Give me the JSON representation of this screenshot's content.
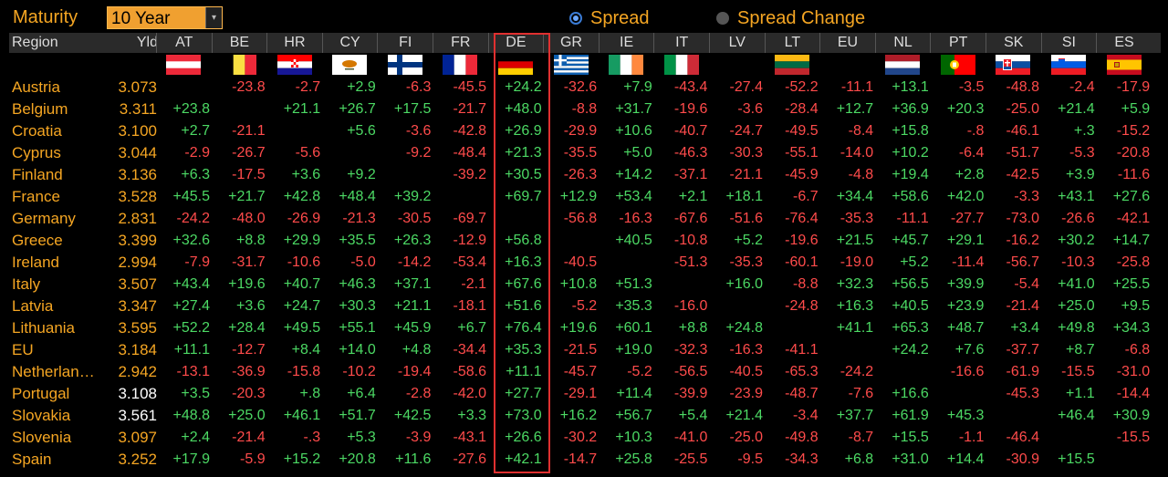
{
  "toolbar": {
    "maturity_label": "Maturity",
    "maturity_value": "10 Year",
    "dropdown_arrow": "▾",
    "spread_label": "Spread",
    "spread_change_label": "Spread Change",
    "selected": "Spread"
  },
  "columns": {
    "region_header": "Region",
    "yld_header": "Yld",
    "countries": [
      "AT",
      "BE",
      "HR",
      "CY",
      "FI",
      "FR",
      "DE",
      "GR",
      "IE",
      "IT",
      "LV",
      "LT",
      "EU",
      "NL",
      "PT",
      "SK",
      "SI",
      "ES"
    ]
  },
  "flags": {
    "AT": "austria-flag",
    "BE": "belgium-flag",
    "HR": "croatia-flag",
    "CY": "cyprus-flag",
    "FI": "finland-flag",
    "FR": "france-flag",
    "DE": "germany-flag",
    "GR": "greece-flag",
    "IE": "ireland-flag",
    "IT": "italy-flag",
    "LT": "lithuania-flag",
    "NL": "netherlands-flag",
    "PT": "portugal-flag",
    "SK": "slovakia-flag",
    "SI": "slovenia-flag",
    "ES": "spain-flag"
  },
  "colors": {
    "positive": "#4cd964",
    "negative": "#ff4b4b",
    "accent": "#f5a623",
    "highlight_border": "#e03030"
  },
  "rows": [
    {
      "region": "Austria",
      "yld": "3.073",
      "values": [
        "",
        "-23.8",
        "-2.7",
        "+2.9",
        "-6.3",
        "-45.5",
        "+24.2",
        "-32.6",
        "+7.9",
        "-43.4",
        "-27.4",
        "-52.2",
        "-11.1",
        "+13.1",
        "-3.5",
        "-48.8",
        "-2.4",
        "-17.9"
      ]
    },
    {
      "region": "Belgium",
      "yld": "3.311",
      "values": [
        "+23.8",
        "",
        "+21.1",
        "+26.7",
        "+17.5",
        "-21.7",
        "+48.0",
        "-8.8",
        "+31.7",
        "-19.6",
        "-3.6",
        "-28.4",
        "+12.7",
        "+36.9",
        "+20.3",
        "-25.0",
        "+21.4",
        "+5.9"
      ]
    },
    {
      "region": "Croatia",
      "yld": "3.100",
      "values": [
        "+2.7",
        "-21.1",
        "",
        "+5.6",
        "-3.6",
        "-42.8",
        "+26.9",
        "-29.9",
        "+10.6",
        "-40.7",
        "-24.7",
        "-49.5",
        "-8.4",
        "+15.8",
        "-.8",
        "-46.1",
        "+.3",
        "-15.2"
      ]
    },
    {
      "region": "Cyprus",
      "yld": "3.044",
      "values": [
        "-2.9",
        "-26.7",
        "-5.6",
        "",
        "-9.2",
        "-48.4",
        "+21.3",
        "-35.5",
        "+5.0",
        "-46.3",
        "-30.3",
        "-55.1",
        "-14.0",
        "+10.2",
        "-6.4",
        "-51.7",
        "-5.3",
        "-20.8"
      ]
    },
    {
      "region": "Finland",
      "yld": "3.136",
      "values": [
        "+6.3",
        "-17.5",
        "+3.6",
        "+9.2",
        "",
        "-39.2",
        "+30.5",
        "-26.3",
        "+14.2",
        "-37.1",
        "-21.1",
        "-45.9",
        "-4.8",
        "+19.4",
        "+2.8",
        "-42.5",
        "+3.9",
        "-11.6"
      ]
    },
    {
      "region": "France",
      "yld": "3.528",
      "values": [
        "+45.5",
        "+21.7",
        "+42.8",
        "+48.4",
        "+39.2",
        "",
        "+69.7",
        "+12.9",
        "+53.4",
        "+2.1",
        "+18.1",
        "-6.7",
        "+34.4",
        "+58.6",
        "+42.0",
        "-3.3",
        "+43.1",
        "+27.6"
      ]
    },
    {
      "region": "Germany",
      "yld": "2.831",
      "values": [
        "-24.2",
        "-48.0",
        "-26.9",
        "-21.3",
        "-30.5",
        "-69.7",
        "",
        "-56.8",
        "-16.3",
        "-67.6",
        "-51.6",
        "-76.4",
        "-35.3",
        "-11.1",
        "-27.7",
        "-73.0",
        "-26.6",
        "-42.1"
      ]
    },
    {
      "region": "Greece",
      "yld": "3.399",
      "values": [
        "+32.6",
        "+8.8",
        "+29.9",
        "+35.5",
        "+26.3",
        "-12.9",
        "+56.8",
        "",
        "+40.5",
        "-10.8",
        "+5.2",
        "-19.6",
        "+21.5",
        "+45.7",
        "+29.1",
        "-16.2",
        "+30.2",
        "+14.7"
      ]
    },
    {
      "region": "Ireland",
      "yld": "2.994",
      "values": [
        "-7.9",
        "-31.7",
        "-10.6",
        "-5.0",
        "-14.2",
        "-53.4",
        "+16.3",
        "-40.5",
        "",
        "-51.3",
        "-35.3",
        "-60.1",
        "-19.0",
        "+5.2",
        "-11.4",
        "-56.7",
        "-10.3",
        "-25.8"
      ]
    },
    {
      "region": "Italy",
      "yld": "3.507",
      "values": [
        "+43.4",
        "+19.6",
        "+40.7",
        "+46.3",
        "+37.1",
        "-2.1",
        "+67.6",
        "+10.8",
        "+51.3",
        "",
        "+16.0",
        "-8.8",
        "+32.3",
        "+56.5",
        "+39.9",
        "-5.4",
        "+41.0",
        "+25.5"
      ]
    },
    {
      "region": "Latvia",
      "yld": "3.347",
      "values": [
        "+27.4",
        "+3.6",
        "+24.7",
        "+30.3",
        "+21.1",
        "-18.1",
        "+51.6",
        "-5.2",
        "+35.3",
        "-16.0",
        "",
        "-24.8",
        "+16.3",
        "+40.5",
        "+23.9",
        "-21.4",
        "+25.0",
        "+9.5"
      ]
    },
    {
      "region": "Lithuania",
      "yld": "3.595",
      "values": [
        "+52.2",
        "+28.4",
        "+49.5",
        "+55.1",
        "+45.9",
        "+6.7",
        "+76.4",
        "+19.6",
        "+60.1",
        "+8.8",
        "+24.8",
        "",
        "+41.1",
        "+65.3",
        "+48.7",
        "+3.4",
        "+49.8",
        "+34.3"
      ]
    },
    {
      "region": "EU",
      "yld": "3.184",
      "values": [
        "+11.1",
        "-12.7",
        "+8.4",
        "+14.0",
        "+4.8",
        "-34.4",
        "+35.3",
        "-21.5",
        "+19.0",
        "-32.3",
        "-16.3",
        "-41.1",
        "",
        "+24.2",
        "+7.6",
        "-37.7",
        "+8.7",
        "-6.8"
      ]
    },
    {
      "region": "Netherlan…",
      "yld": "2.942",
      "values": [
        "-13.1",
        "-36.9",
        "-15.8",
        "-10.2",
        "-19.4",
        "-58.6",
        "+11.1",
        "-45.7",
        "-5.2",
        "-56.5",
        "-40.5",
        "-65.3",
        "-24.2",
        "",
        "-16.6",
        "-61.9",
        "-15.5",
        "-31.0"
      ]
    },
    {
      "region": "Portugal",
      "yld": "3.108",
      "values": [
        "+3.5",
        "-20.3",
        "+.8",
        "+6.4",
        "-2.8",
        "-42.0",
        "+27.7",
        "-29.1",
        "+11.4",
        "-39.9",
        "-23.9",
        "-48.7",
        "-7.6",
        "+16.6",
        "",
        "-45.3",
        "+1.1",
        "-14.4"
      ]
    },
    {
      "region": "Slovakia",
      "yld": "3.561",
      "values": [
        "+48.8",
        "+25.0",
        "+46.1",
        "+51.7",
        "+42.5",
        "+3.3",
        "+73.0",
        "+16.2",
        "+56.7",
        "+5.4",
        "+21.4",
        "-3.4",
        "+37.7",
        "+61.9",
        "+45.3",
        "",
        "+46.4",
        "+30.9"
      ]
    },
    {
      "region": "Slovenia",
      "yld": "3.097",
      "values": [
        "+2.4",
        "-21.4",
        "-.3",
        "+5.3",
        "-3.9",
        "-43.1",
        "+26.6",
        "-30.2",
        "+10.3",
        "-41.0",
        "-25.0",
        "-49.8",
        "-8.7",
        "+15.5",
        "-1.1",
        "-46.4",
        "",
        "-15.5"
      ]
    },
    {
      "region": "Spain",
      "yld": "3.252",
      "values": [
        "+17.9",
        "-5.9",
        "+15.2",
        "+20.8",
        "+11.6",
        "-27.6",
        "+42.1",
        "-14.7",
        "+25.8",
        "-25.5",
        "-9.5",
        "-34.3",
        "+6.8",
        "+31.0",
        "+14.4",
        "-30.9",
        "+15.5",
        ""
      ]
    }
  ]
}
